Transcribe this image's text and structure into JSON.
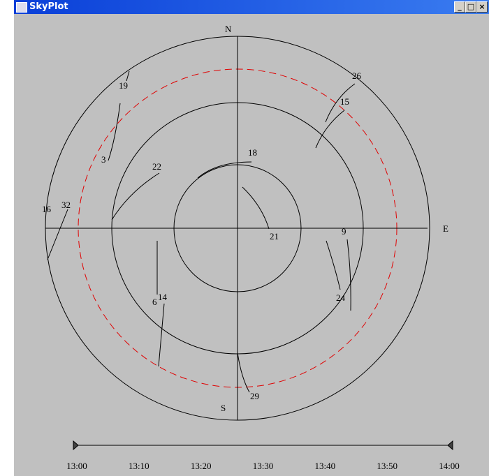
{
  "window": {
    "title": "SkyPlot"
  },
  "compass": {
    "north": "N",
    "south": "S",
    "east": "E"
  },
  "satellites": [
    "19",
    "3",
    "22",
    "16",
    "32",
    "18",
    "21",
    "26",
    "15",
    "9",
    "24",
    "6",
    "14",
    "29"
  ],
  "timeline": [
    "13:00",
    "13:10",
    "13:20",
    "13:30",
    "13:40",
    "13:50",
    "14:00"
  ]
}
